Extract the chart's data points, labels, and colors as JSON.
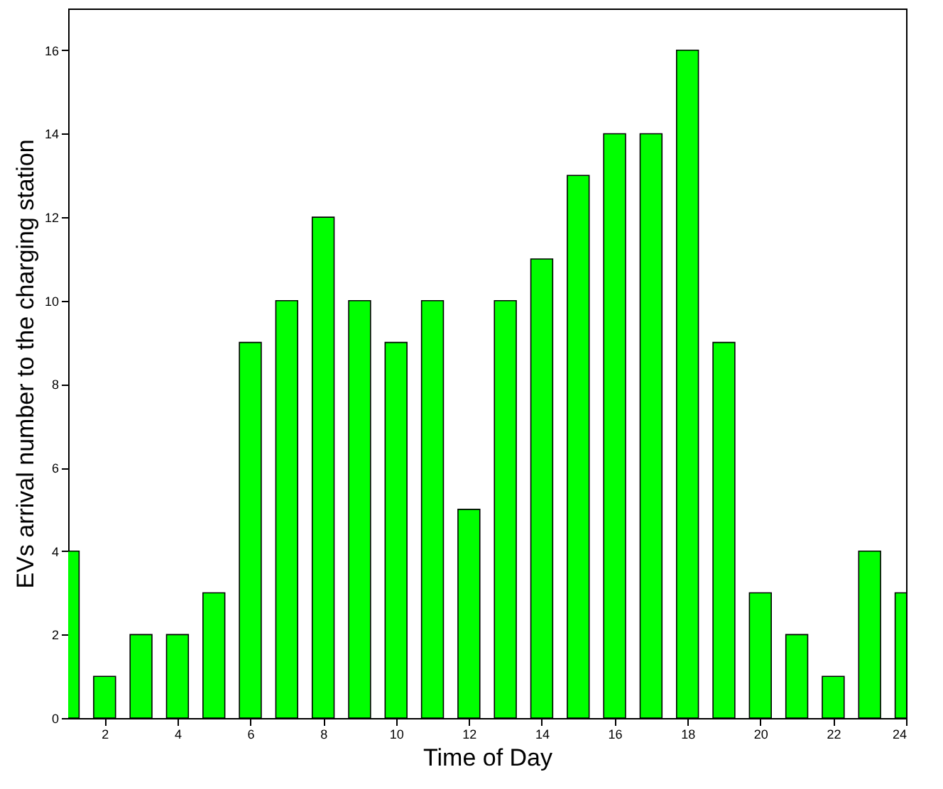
{
  "chart_data": {
    "type": "bar",
    "xlabel": "Time of Day",
    "ylabel": "EVs arrival number to the charging station",
    "x": [
      1,
      2,
      3,
      4,
      5,
      6,
      7,
      8,
      9,
      10,
      11,
      12,
      13,
      14,
      15,
      16,
      17,
      18,
      19,
      20,
      21,
      22,
      23,
      24
    ],
    "values": [
      4,
      1,
      2,
      2,
      3,
      9,
      10,
      12,
      10,
      9,
      10,
      5,
      10,
      11,
      13,
      14,
      14,
      16,
      9,
      3,
      2,
      1,
      4,
      3
    ],
    "color": "#00ff00",
    "xlim": [
      1,
      24
    ],
    "xticks": [
      2,
      4,
      6,
      8,
      10,
      12,
      14,
      16,
      18,
      20,
      22,
      24
    ],
    "ylim": [
      0,
      17
    ],
    "yticks": [
      0,
      2,
      4,
      6,
      8,
      10,
      12,
      14,
      16
    ],
    "grid": false
  }
}
